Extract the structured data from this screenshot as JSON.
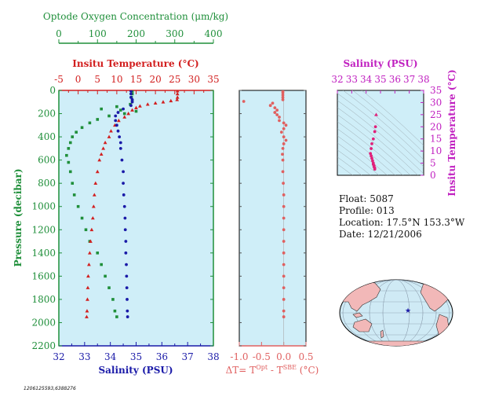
{
  "chart_data": [
    {
      "type": "scatter",
      "ylabel": "Pressure (decibar)",
      "ylim": [
        2200,
        0
      ],
      "yticks": [
        "0",
        "200",
        "400",
        "600",
        "800",
        "1000",
        "1200",
        "1400",
        "1600",
        "1800",
        "2000",
        "2200"
      ],
      "axes": {
        "oxygen": {
          "label": "Optode Oxygen Concentration (μm/kg)",
          "range": [
            0,
            400
          ],
          "ticks": [
            "0",
            "100",
            "200",
            "300",
            "400"
          ],
          "color": "#1f8f3a"
        },
        "temperature": {
          "label": "Insitu Temperature (°C)",
          "range": [
            -5,
            35
          ],
          "ticks": [
            "-5",
            "0",
            "5",
            "10",
            "15",
            "20",
            "25",
            "30",
            "35"
          ],
          "color": "#d21f1f"
        },
        "salinity": {
          "label": "Salinity (PSU)",
          "range": [
            32,
            38
          ],
          "ticks": [
            "32",
            "33",
            "34",
            "35",
            "36",
            "37",
            "38"
          ],
          "color": "#1a1aa8"
        }
      },
      "series": [
        {
          "axis": "oxygen",
          "marker": "square",
          "color": "#1f8f3a",
          "points": [
            [
              190,
              5
            ],
            [
              190,
              30
            ],
            [
              188,
              60
            ],
            [
              190,
              90
            ],
            [
              185,
              120
            ],
            [
              150,
              140
            ],
            [
              110,
              160
            ],
            [
              160,
              170
            ],
            [
              200,
              180
            ],
            [
              170,
              200
            ],
            [
              130,
              220
            ],
            [
              100,
              250
            ],
            [
              80,
              280
            ],
            [
              60,
              320
            ],
            [
              45,
              360
            ],
            [
              35,
              400
            ],
            [
              30,
              450
            ],
            [
              25,
              500
            ],
            [
              20,
              560
            ],
            [
              25,
              620
            ],
            [
              30,
              700
            ],
            [
              35,
              800
            ],
            [
              40,
              900
            ],
            [
              50,
              1000
            ],
            [
              60,
              1100
            ],
            [
              70,
              1200
            ],
            [
              80,
              1300
            ],
            [
              100,
              1400
            ],
            [
              110,
              1500
            ],
            [
              120,
              1600
            ],
            [
              130,
              1700
            ],
            [
              140,
              1800
            ],
            [
              145,
              1900
            ],
            [
              150,
              1950
            ]
          ]
        },
        {
          "axis": "temperature",
          "marker": "triangle",
          "color": "#d21f1f",
          "points": [
            [
              25.7,
              5
            ],
            [
              25.7,
              30
            ],
            [
              25.7,
              60
            ],
            [
              25.6,
              80
            ],
            [
              24,
              90
            ],
            [
              22,
              100
            ],
            [
              20,
              110
            ],
            [
              18,
              120
            ],
            [
              16,
              135
            ],
            [
              15,
              150
            ],
            [
              14,
              170
            ],
            [
              13,
              200
            ],
            [
              12,
              230
            ],
            [
              10.5,
              260
            ],
            [
              9.5,
              300
            ],
            [
              8.5,
              350
            ],
            [
              8,
              400
            ],
            [
              7,
              450
            ],
            [
              6.5,
              500
            ],
            [
              6,
              550
            ],
            [
              5.5,
              600
            ],
            [
              5,
              700
            ],
            [
              4.5,
              800
            ],
            [
              4.2,
              900
            ],
            [
              4,
              1000
            ],
            [
              3.8,
              1100
            ],
            [
              3.5,
              1200
            ],
            [
              3.2,
              1300
            ],
            [
              3,
              1400
            ],
            [
              2.8,
              1500
            ],
            [
              2.6,
              1600
            ],
            [
              2.5,
              1700
            ],
            [
              2.4,
              1800
            ],
            [
              2.3,
              1900
            ],
            [
              2.2,
              1950
            ]
          ]
        },
        {
          "axis": "salinity",
          "marker": "circle",
          "color": "#1a1aa8",
          "points": [
            [
              34.8,
              5
            ],
            [
              34.8,
              30
            ],
            [
              34.8,
              60
            ],
            [
              34.85,
              80
            ],
            [
              34.85,
              100
            ],
            [
              34.8,
              130
            ],
            [
              34.5,
              160
            ],
            [
              34.3,
              190
            ],
            [
              34.2,
              220
            ],
            [
              34.2,
              260
            ],
            [
              34.25,
              300
            ],
            [
              34.3,
              350
            ],
            [
              34.35,
              400
            ],
            [
              34.4,
              450
            ],
            [
              34.4,
              500
            ],
            [
              34.45,
              600
            ],
            [
              34.5,
              700
            ],
            [
              34.5,
              800
            ],
            [
              34.52,
              900
            ],
            [
              34.55,
              1000
            ],
            [
              34.57,
              1100
            ],
            [
              34.58,
              1200
            ],
            [
              34.6,
              1300
            ],
            [
              34.6,
              1400
            ],
            [
              34.62,
              1500
            ],
            [
              34.63,
              1600
            ],
            [
              34.64,
              1700
            ],
            [
              34.65,
              1800
            ],
            [
              34.66,
              1900
            ],
            [
              34.67,
              1950
            ]
          ]
        }
      ]
    },
    {
      "type": "scatter",
      "xlabel": "ΔT= T^Opt - T^SBE (°C)",
      "xlim": [
        -1.0,
        0.5
      ],
      "xticks": [
        "-1.0",
        "-0.5",
        "0.0",
        "0.5"
      ],
      "ylim": [
        2200,
        0
      ],
      "color": "#e06060",
      "points": [
        [
          -0.02,
          5
        ],
        [
          -0.02,
          20
        ],
        [
          -0.02,
          40
        ],
        [
          -0.02,
          60
        ],
        [
          -0.02,
          80
        ],
        [
          -0.9,
          95
        ],
        [
          -0.25,
          110
        ],
        [
          -0.3,
          130
        ],
        [
          -0.2,
          150
        ],
        [
          -0.15,
          170
        ],
        [
          -0.2,
          190
        ],
        [
          -0.15,
          210
        ],
        [
          -0.1,
          230
        ],
        [
          -0.1,
          260
        ],
        [
          0.0,
          280
        ],
        [
          0.05,
          300
        ],
        [
          0.0,
          330
        ],
        [
          -0.05,
          360
        ],
        [
          0.0,
          400
        ],
        [
          0.05,
          430
        ],
        [
          0.0,
          460
        ],
        [
          -0.02,
          500
        ],
        [
          -0.03,
          550
        ],
        [
          -0.02,
          600
        ],
        [
          -0.02,
          700
        ],
        [
          -0.01,
          800
        ],
        [
          0.0,
          900
        ],
        [
          0.0,
          1000
        ],
        [
          0.0,
          1100
        ],
        [
          0.0,
          1200
        ],
        [
          0.0,
          1300
        ],
        [
          0.0,
          1400
        ],
        [
          0.0,
          1500
        ],
        [
          0.0,
          1600
        ],
        [
          0.0,
          1700
        ],
        [
          0.0,
          1800
        ],
        [
          0.0,
          1900
        ],
        [
          0.0,
          1950
        ]
      ]
    },
    {
      "type": "scatter",
      "title": "Salinity (PSU)",
      "ylabel": "Insitu Temperature (°C)",
      "xlim": [
        32,
        38
      ],
      "ylim": [
        0,
        35
      ],
      "xticks": [
        "32",
        "33",
        "34",
        "35",
        "36",
        "37",
        "38"
      ],
      "yticks": [
        "0",
        "5",
        "10",
        "15",
        "20",
        "25",
        "30",
        "35"
      ],
      "color": "#e0207a",
      "points": [
        [
          34.7,
          25
        ],
        [
          34.65,
          20
        ],
        [
          34.6,
          18
        ],
        [
          34.5,
          15
        ],
        [
          34.4,
          13
        ],
        [
          34.35,
          11
        ],
        [
          34.3,
          9
        ],
        [
          34.35,
          8
        ],
        [
          34.4,
          7
        ],
        [
          34.45,
          6
        ],
        [
          34.5,
          5
        ],
        [
          34.5,
          4.5
        ],
        [
          34.55,
          4
        ],
        [
          34.55,
          3.5
        ],
        [
          34.6,
          3
        ],
        [
          34.6,
          2.5
        ]
      ]
    }
  ],
  "info": {
    "float": "Float:  5087",
    "profile": "Profile:  013",
    "location": "Location:  17.5°N  153.3°W",
    "date": "Date:  12/21/2006"
  },
  "footer_id": "1206125593,6388276",
  "map": {
    "marker": "★",
    "marker_color": "#1a1aa8",
    "land_color": "#f2b8b8",
    "ocean_color": "#cfeaf5"
  }
}
